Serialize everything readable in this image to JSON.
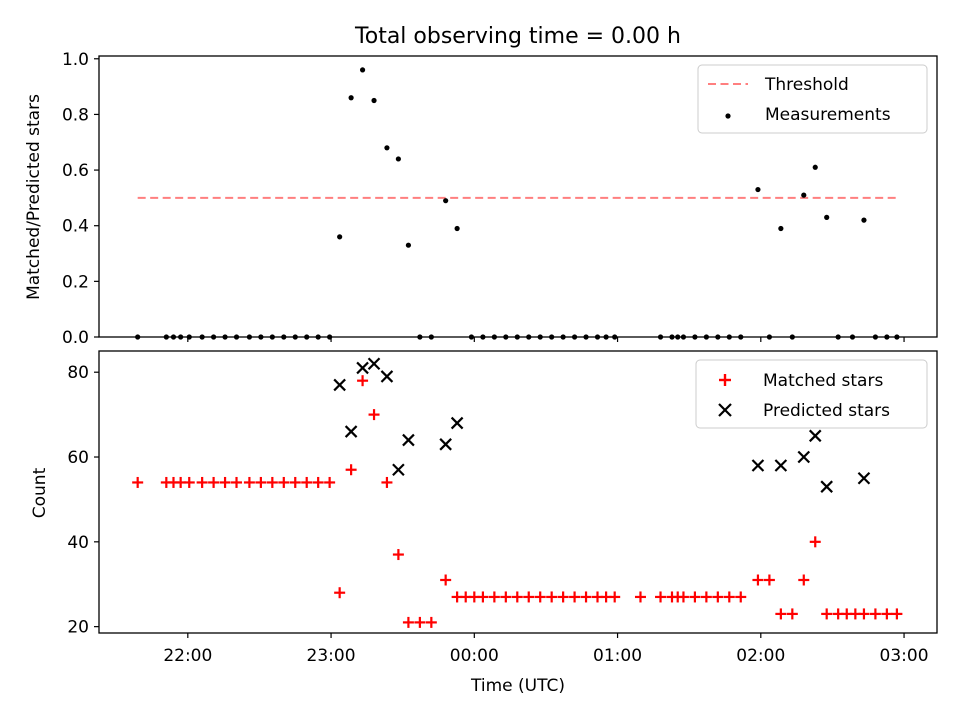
{
  "chart_data": {
    "type": "scatter",
    "title": "Total observing time = 0.00 h",
    "xlabel": "Time (UTC)",
    "xticks": [
      {
        "hours": -2,
        "label": "22:00"
      },
      {
        "hours": -1,
        "label": "23:00"
      },
      {
        "hours": 0,
        "label": "00:00"
      },
      {
        "hours": 1,
        "label": "01:00"
      },
      {
        "hours": 2,
        "label": "02:00"
      },
      {
        "hours": 3,
        "label": "03:00"
      }
    ],
    "xlim_hours": [
      -2.62,
      3.23
    ],
    "panels": [
      {
        "id": "ratio",
        "ylabel": "Matched/Predicted stars",
        "ylim": [
          0,
          1.01
        ],
        "yticks": [
          "0.0",
          "0.2",
          "0.4",
          "0.6",
          "0.8",
          "1.0"
        ],
        "legend": {
          "position": "upper right",
          "entries": [
            "Threshold",
            "Measurements"
          ]
        },
        "threshold": {
          "name": "Threshold",
          "value": 0.5,
          "x_start": -2.35,
          "x_end": 2.95,
          "color": "#ff7f7f"
        },
        "measurements": {
          "name": "Measurements",
          "color": "#000000",
          "x": [
            -2.35,
            -2.15,
            -2.1,
            -2.05,
            -1.99,
            -1.9,
            -1.82,
            -1.74,
            -1.66,
            -1.57,
            -1.49,
            -1.41,
            -1.33,
            -1.25,
            -1.17,
            -1.09,
            -1.01,
            -0.94,
            -0.86,
            -0.78,
            -0.7,
            -0.61,
            -0.53,
            -0.46,
            -0.38,
            -0.3,
            -0.2,
            -0.12,
            -0.02,
            0.06,
            0.14,
            0.22,
            0.3,
            0.38,
            0.46,
            0.54,
            0.62,
            0.7,
            0.78,
            0.86,
            0.92,
            0.98,
            1.3,
            1.38,
            1.42,
            1.46,
            1.54,
            1.62,
            1.7,
            1.78,
            1.86,
            1.98,
            2.06,
            2.14,
            2.22,
            2.3,
            2.38,
            2.46,
            2.54,
            2.64,
            2.72,
            2.8,
            2.88,
            2.95
          ],
          "y": [
            0.0,
            0.0,
            0.0,
            0.0,
            0.0,
            0.0,
            0.0,
            0.0,
            0.0,
            0.0,
            0.0,
            0.0,
            0.0,
            0.0,
            0.0,
            0.0,
            0.0,
            0.36,
            0.86,
            0.96,
            0.85,
            0.68,
            0.64,
            0.33,
            0.0,
            0.0,
            0.49,
            0.39,
            0.0,
            0.0,
            0.0,
            0.0,
            0.0,
            0.0,
            0.0,
            0.0,
            0.0,
            0.0,
            0.0,
            0.0,
            0.0,
            0.0,
            0.0,
            0.0,
            0.0,
            0.0,
            0.0,
            0.0,
            0.0,
            0.0,
            0.0,
            0.53,
            0.0,
            0.39,
            0.0,
            0.51,
            0.61,
            0.43,
            0.0,
            0.0,
            0.42,
            0.0,
            0.0,
            0.0
          ]
        }
      },
      {
        "id": "counts",
        "ylabel": "Count",
        "ylim": [
          18.5,
          85
        ],
        "yticks": [
          "20",
          "40",
          "60",
          "80"
        ],
        "legend": {
          "position": "upper right",
          "entries": [
            "Matched stars",
            "Predicted stars"
          ]
        },
        "series": [
          {
            "name": "Matched stars",
            "marker": "plus",
            "color": "#ff0000",
            "x": [
              -2.35,
              -2.15,
              -2.1,
              -2.05,
              -1.99,
              -1.9,
              -1.82,
              -1.74,
              -1.66,
              -1.57,
              -1.49,
              -1.41,
              -1.33,
              -1.25,
              -1.17,
              -1.09,
              -1.01,
              -0.94,
              -0.86,
              -0.78,
              -0.7,
              -0.61,
              -0.53,
              -0.46,
              -0.38,
              -0.3,
              -0.2,
              -0.12,
              -0.06,
              0.0,
              0.06,
              0.14,
              0.22,
              0.3,
              0.38,
              0.46,
              0.54,
              0.62,
              0.7,
              0.78,
              0.86,
              0.92,
              0.98,
              1.16,
              1.3,
              1.38,
              1.42,
              1.46,
              1.54,
              1.62,
              1.7,
              1.78,
              1.86,
              1.98,
              2.06,
              2.14,
              2.22,
              2.3,
              2.38,
              2.46,
              2.54,
              2.6,
              2.66,
              2.72,
              2.8,
              2.88,
              2.95
            ],
            "y": [
              54,
              54,
              54,
              54,
              54,
              54,
              54,
              54,
              54,
              54,
              54,
              54,
              54,
              54,
              54,
              54,
              54,
              28,
              57,
              78,
              70,
              54,
              37,
              21,
              21,
              21,
              31,
              27,
              27,
              27,
              27,
              27,
              27,
              27,
              27,
              27,
              27,
              27,
              27,
              27,
              27,
              27,
              27,
              27,
              27,
              27,
              27,
              27,
              27,
              27,
              27,
              27,
              27,
              31,
              31,
              23,
              23,
              31,
              40,
              23,
              23,
              23,
              23,
              23,
              23,
              23,
              23
            ]
          },
          {
            "name": "Predicted stars",
            "marker": "x",
            "color": "#000000",
            "x": [
              -0.94,
              -0.86,
              -0.78,
              -0.7,
              -0.61,
              -0.53,
              -0.46,
              -0.2,
              -0.12,
              1.98,
              2.14,
              2.3,
              2.38,
              2.46,
              2.72
            ],
            "y": [
              77,
              66,
              81,
              82,
              79,
              57,
              64,
              63,
              68,
              58,
              58,
              60,
              65,
              53,
              55
            ]
          }
        ]
      }
    ]
  }
}
